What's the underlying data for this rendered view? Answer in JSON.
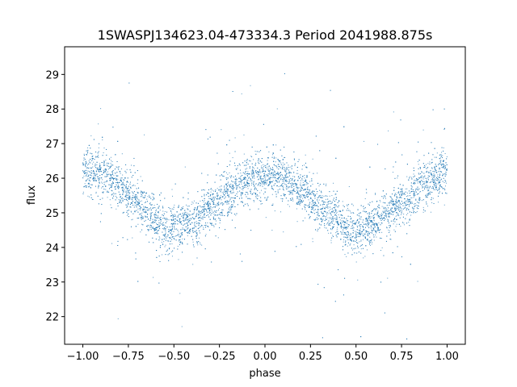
{
  "chart_data": {
    "type": "scatter",
    "title": "1SWASPJ134623.04-473334.3 Period 2041988.875s",
    "xlabel": "phase",
    "ylabel": "flux",
    "xlim": [
      -1.1,
      1.1
    ],
    "ylim": [
      21.2,
      29.8
    ],
    "xticks": [
      -1.0,
      -0.75,
      -0.5,
      -0.25,
      0.0,
      0.25,
      0.5,
      0.75,
      1.0
    ],
    "xtick_labels": [
      "−1.00",
      "−0.75",
      "−0.50",
      "−0.25",
      "0.00",
      "0.25",
      "0.50",
      "0.75",
      "1.00"
    ],
    "yticks": [
      22,
      23,
      24,
      25,
      26,
      27,
      28,
      29
    ],
    "ytick_labels": [
      "22",
      "23",
      "24",
      "25",
      "26",
      "27",
      "28",
      "29"
    ],
    "grid": false,
    "point_color": "#1f77b4",
    "series": [
      {
        "x": [
          -1.0,
          -0.9,
          -0.8,
          -0.7,
          -0.6,
          -0.55,
          -0.5,
          -0.4,
          -0.3,
          -0.2,
          -0.1,
          0.0,
          0.1,
          0.2,
          0.3,
          0.4,
          0.45,
          0.5,
          0.6,
          0.7,
          0.8,
          0.9,
          1.0
        ],
        "y": [
          26.2,
          26.1,
          25.8,
          25.3,
          24.8,
          24.5,
          24.6,
          24.7,
          25.1,
          25.6,
          25.9,
          26.1,
          26.0,
          25.6,
          25.2,
          24.8,
          24.5,
          24.5,
          24.7,
          25.1,
          25.5,
          25.9,
          26.2
        ]
      }
    ]
  }
}
